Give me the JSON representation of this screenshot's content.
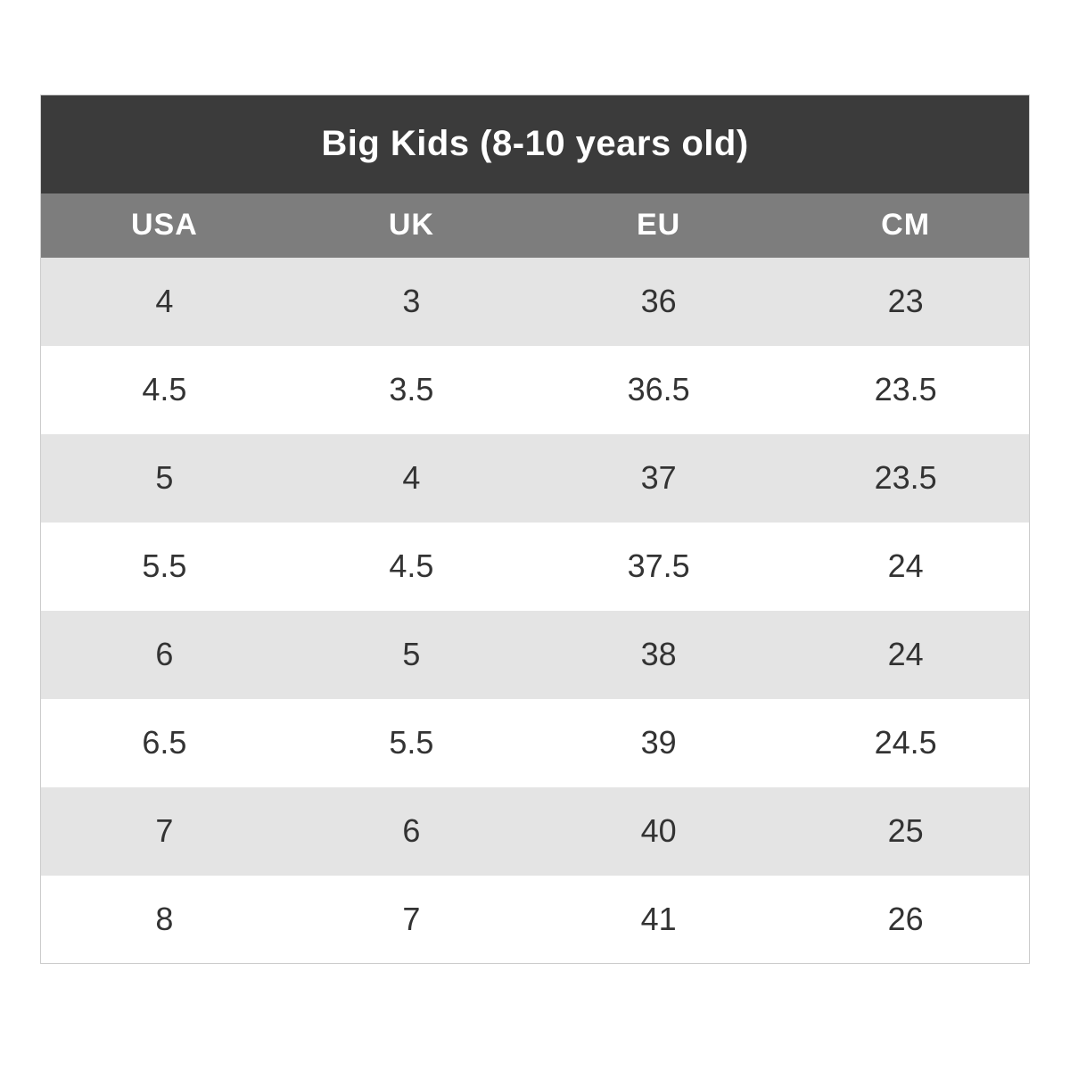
{
  "table": {
    "title": "Big Kids (8-10 years old)",
    "columns": [
      "USA",
      "UK",
      "EU",
      "CM"
    ],
    "rows": [
      [
        "4",
        "3",
        "36",
        "23"
      ],
      [
        "4.5",
        "3.5",
        "36.5",
        "23.5"
      ],
      [
        "5",
        "4",
        "37",
        "23.5"
      ],
      [
        "5.5",
        "4.5",
        "37.5",
        "24"
      ],
      [
        "6",
        "5",
        "38",
        "24"
      ],
      [
        "6.5",
        "5.5",
        "39",
        "24.5"
      ],
      [
        "7",
        "6",
        "40",
        "25"
      ],
      [
        "8",
        "7",
        "41",
        "26"
      ]
    ]
  },
  "colors": {
    "title_bar_bg": "#3b3b3b",
    "header_row_bg": "#7d7d7d",
    "striped_row_bg": "#e4e4e4",
    "plain_row_bg": "#ffffff",
    "header_text": "#ffffff",
    "cell_text": "#333333",
    "table_border": "#cccccc"
  },
  "chart_data": {
    "type": "table",
    "title": "Big Kids (8-10 years old)",
    "columns": [
      "USA",
      "UK",
      "EU",
      "CM"
    ],
    "rows": [
      [
        4,
        3,
        36,
        23
      ],
      [
        4.5,
        3.5,
        36.5,
        23.5
      ],
      [
        5,
        4,
        37,
        23.5
      ],
      [
        5.5,
        4.5,
        37.5,
        24
      ],
      [
        6,
        5,
        38,
        24
      ],
      [
        6.5,
        5.5,
        39,
        24.5
      ],
      [
        7,
        6,
        40,
        25
      ],
      [
        8,
        7,
        41,
        26
      ]
    ],
    "layout_hints": {
      "title_position": "top-spanning-bar",
      "row_striping": "odd-rows-gray",
      "alignment": "center"
    }
  }
}
